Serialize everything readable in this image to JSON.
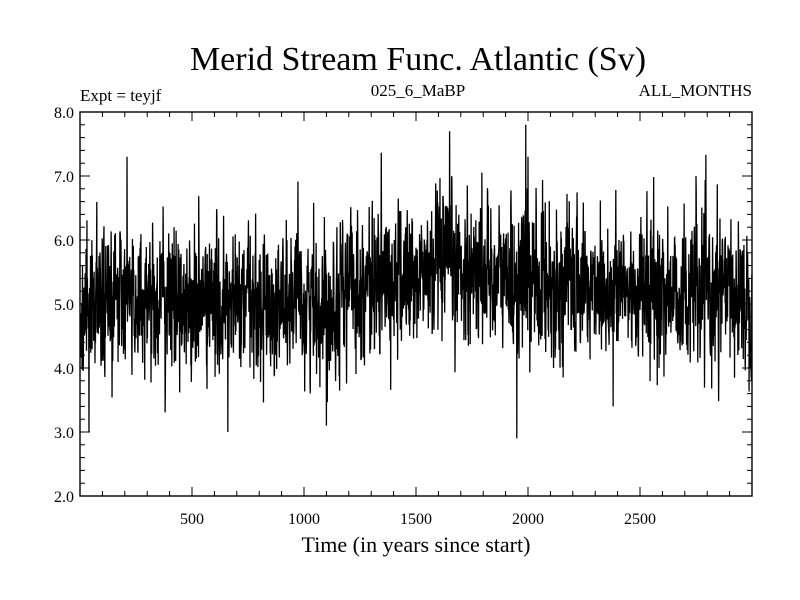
{
  "chart_data": {
    "type": "line",
    "title": "Merid Stream Func. Atlantic (Sv)",
    "subtitle_left": "Expt = teyjf",
    "subtitle_center": "025_6_MaBP",
    "subtitle_right": "ALL_MONTHS",
    "xlabel": "Time (in years since start)",
    "ylabel": "",
    "xlim": [
      0,
      3000
    ],
    "ylim": [
      2.0,
      8.0
    ],
    "x_ticks": [
      500,
      1000,
      1500,
      2000,
      2500
    ],
    "x_tick_labels": [
      "500",
      "1000",
      "1500",
      "2000",
      "2500"
    ],
    "y_ticks": [
      2.0,
      3.0,
      4.0,
      5.0,
      6.0,
      7.0,
      8.0
    ],
    "y_tick_labels": [
      "2.0",
      "3.0",
      "4.0",
      "5.0",
      "6.0",
      "7.0",
      "8.0"
    ],
    "series": [
      {
        "name": "Merid Stream Func. Atlantic",
        "color": "#000000",
        "x_start": 1,
        "x_step": 1,
        "n_points": 3000,
        "mean_anchors": [
          [
            0,
            5.0
          ],
          [
            300,
            5.1
          ],
          [
            600,
            5.0
          ],
          [
            900,
            5.0
          ],
          [
            1100,
            5.0
          ],
          [
            1200,
            5.3
          ],
          [
            1500,
            5.4
          ],
          [
            1700,
            5.6
          ],
          [
            1900,
            5.4
          ],
          [
            2200,
            5.3
          ],
          [
            2600,
            5.2
          ],
          [
            3000,
            5.1
          ]
        ],
        "noise_sd": 0.55,
        "notable_peaks": [
          [
            210,
            7.3
          ],
          [
            1650,
            7.7
          ],
          [
            1990,
            7.8
          ],
          [
            2000,
            7.3
          ],
          [
            2750,
            7.0
          ]
        ],
        "notable_troughs": [
          [
            40,
            3.0
          ],
          [
            660,
            3.0
          ],
          [
            1100,
            3.1
          ],
          [
            1950,
            2.9
          ],
          [
            2380,
            3.4
          ]
        ]
      }
    ]
  }
}
